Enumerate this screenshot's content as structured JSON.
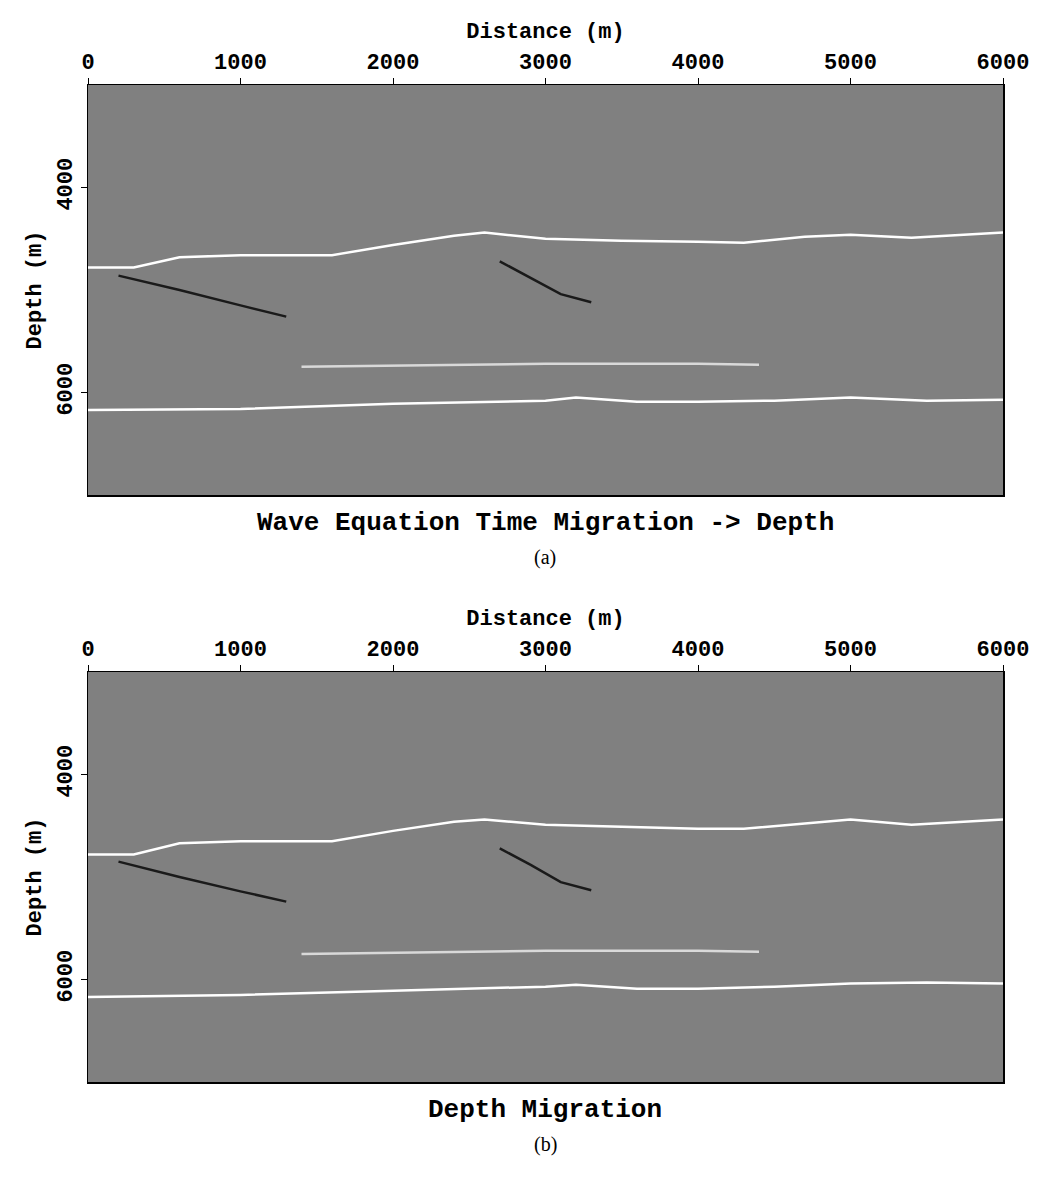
{
  "chart_data": [
    {
      "type": "line",
      "title": "Wave Equation Time Migration -> Depth",
      "caption": "(a)",
      "x_label": "Distance (m)",
      "y_label": "Depth (m)",
      "xlim": [
        0,
        6000
      ],
      "xticks": [
        0,
        1000,
        2000,
        3000,
        4000,
        5000,
        6000
      ],
      "ylim": [
        7000,
        3000
      ],
      "yticks": [
        4000,
        6000
      ],
      "grid": false,
      "series": [
        {
          "color": "#ffffff",
          "x": [
            0,
            300,
            600,
            1000,
            1600,
            2000,
            2400,
            2600,
            3000,
            3500,
            4000,
            4300,
            4700,
            5000,
            5400,
            6000
          ],
          "values": [
            4780,
            4780,
            4680,
            4660,
            4660,
            4560,
            4470,
            4440,
            4500,
            4520,
            4530,
            4540,
            4480,
            4460,
            4490,
            4440
          ]
        },
        {
          "color": "#1a1a1a",
          "x": [
            200,
            600,
            1000,
            1300
          ],
          "values": [
            4860,
            5000,
            5150,
            5260
          ]
        },
        {
          "color": "#1a1a1a",
          "x": [
            2700,
            2900,
            3100,
            3300
          ],
          "values": [
            4720,
            4880,
            5040,
            5120
          ]
        },
        {
          "color": "#d9d9d9",
          "x": [
            1400,
            2000,
            3000,
            4000,
            4400
          ],
          "values": [
            5750,
            5740,
            5720,
            5720,
            5730
          ]
        },
        {
          "color": "#ffffff",
          "x": [
            0,
            1000,
            2000,
            3000,
            3200,
            3600,
            4000,
            4500,
            5000,
            5500,
            6000
          ],
          "values": [
            6170,
            6160,
            6110,
            6080,
            6050,
            6090,
            6090,
            6080,
            6050,
            6080,
            6070
          ]
        }
      ]
    },
    {
      "type": "line",
      "title": "Depth Migration",
      "caption": "(b)",
      "x_label": "Distance (m)",
      "y_label": "Depth (m)",
      "xlim": [
        0,
        6000
      ],
      "xticks": [
        0,
        1000,
        2000,
        3000,
        4000,
        5000,
        6000
      ],
      "ylim": [
        7000,
        3000
      ],
      "yticks": [
        4000,
        6000
      ],
      "grid": false,
      "series": [
        {
          "color": "#ffffff",
          "x": [
            0,
            300,
            600,
            1000,
            1600,
            2000,
            2400,
            2600,
            3000,
            3500,
            4000,
            4300,
            4700,
            5000,
            5400,
            6000
          ],
          "values": [
            4780,
            4780,
            4670,
            4650,
            4650,
            4550,
            4460,
            4440,
            4490,
            4510,
            4530,
            4530,
            4480,
            4440,
            4490,
            4440
          ]
        },
        {
          "color": "#1a1a1a",
          "x": [
            200,
            600,
            1000,
            1300
          ],
          "values": [
            4850,
            5000,
            5140,
            5240
          ]
        },
        {
          "color": "#1a1a1a",
          "x": [
            2700,
            2900,
            3100,
            3300
          ],
          "values": [
            4720,
            4880,
            5050,
            5130
          ]
        },
        {
          "color": "#d9d9d9",
          "x": [
            1400,
            2000,
            3000,
            4000,
            4400
          ],
          "values": [
            5750,
            5740,
            5720,
            5720,
            5730
          ]
        },
        {
          "color": "#ffffff",
          "x": [
            0,
            1000,
            2000,
            3000,
            3200,
            3600,
            4000,
            4500,
            5000,
            5500,
            6000
          ],
          "values": [
            6170,
            6150,
            6110,
            6070,
            6050,
            6090,
            6090,
            6070,
            6040,
            6030,
            6040
          ]
        }
      ]
    }
  ]
}
